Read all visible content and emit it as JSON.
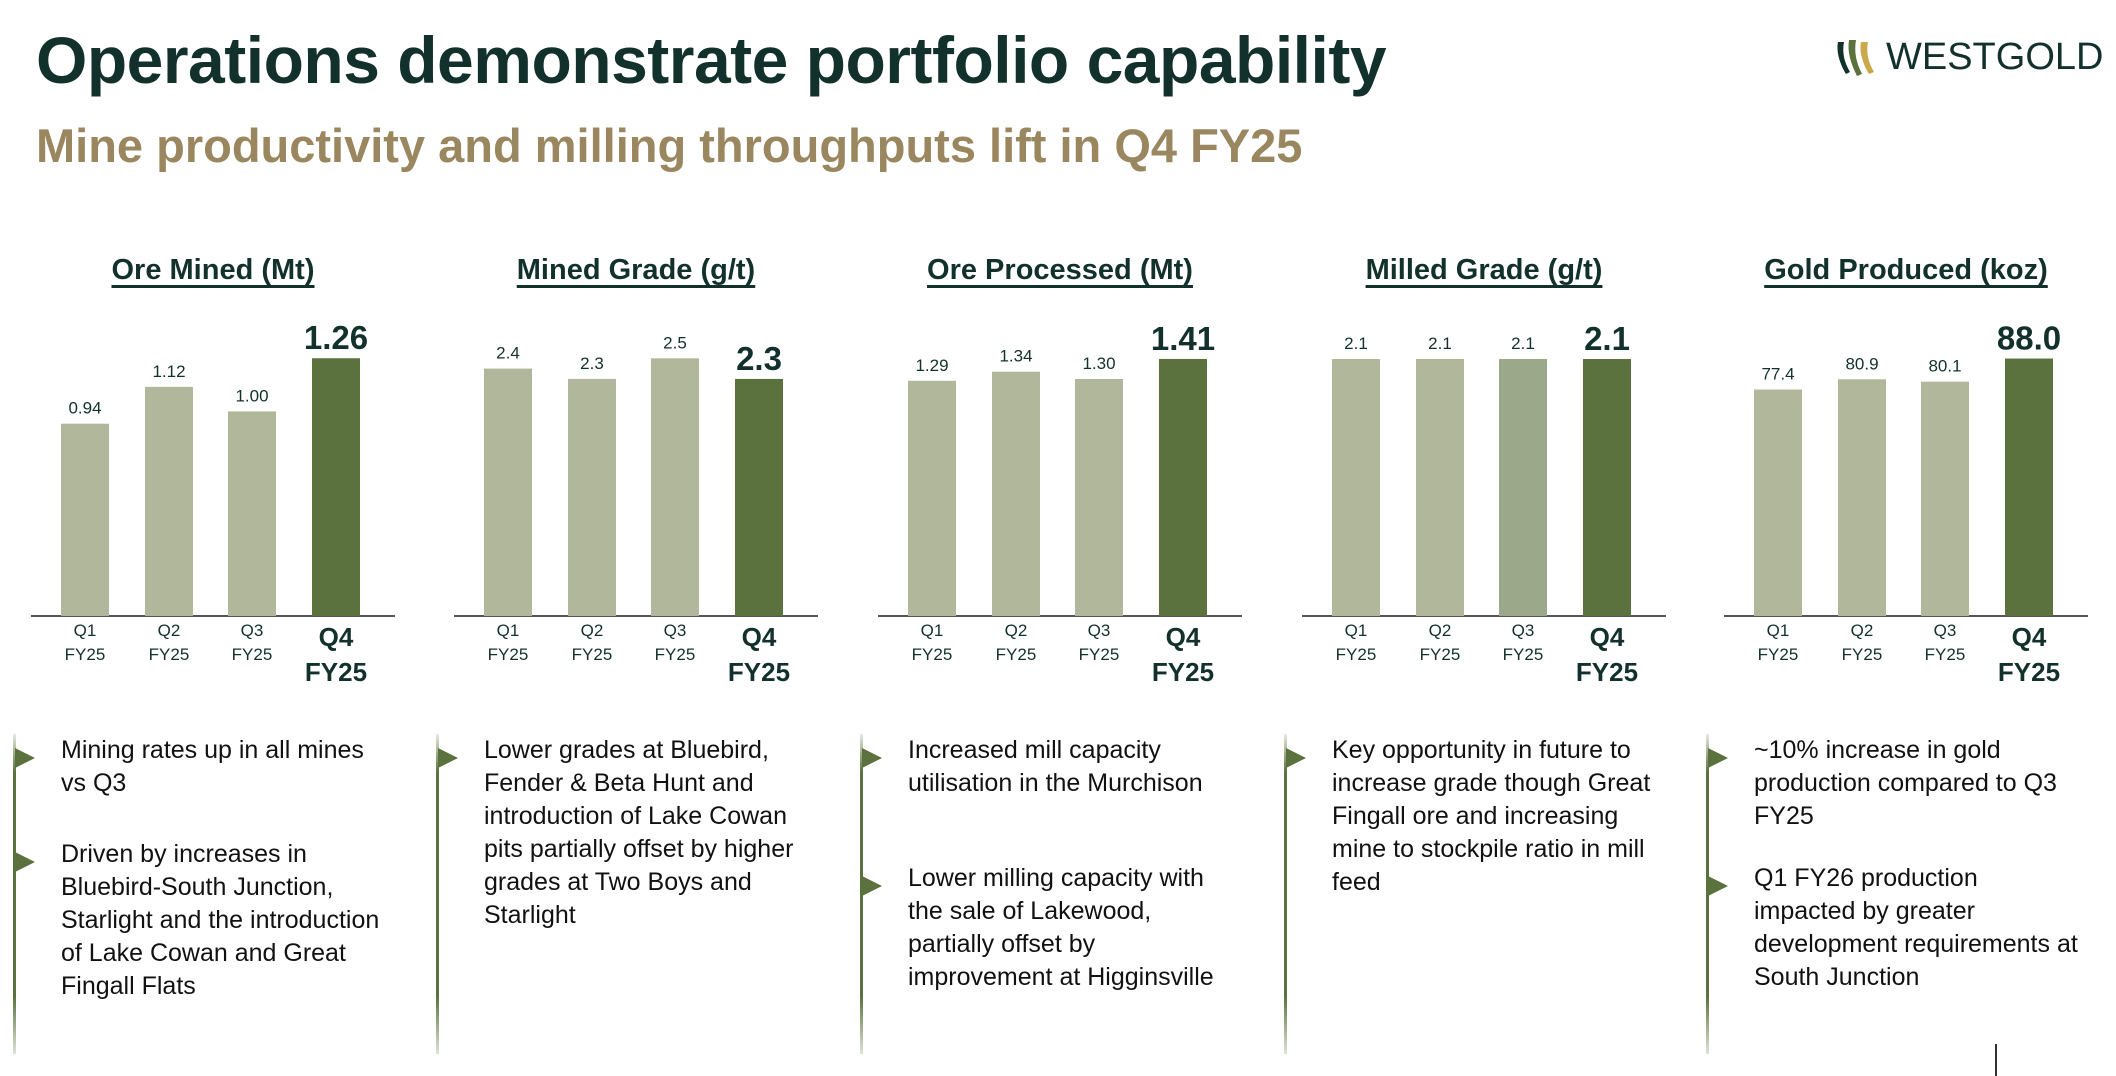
{
  "header": {
    "title": "Operations demonstrate portfolio capability",
    "subtitle": "Mine productivity and milling throughputs lift in Q4 FY25"
  },
  "logo": {
    "text": "WESTGOLD"
  },
  "colors": {
    "bar_light": "#b0b79b",
    "bar_mid": "#9ba88a",
    "bar_dark": "#5c723e",
    "axis": "#555555",
    "title": "#13312c",
    "subtitle": "#9a8760"
  },
  "chart_data": [
    {
      "type": "bar",
      "title": "Ore Mined (Mt)",
      "categories": [
        "Q1 FY25",
        "Q2 FY25",
        "Q3 FY25",
        "Q4 FY25"
      ],
      "values": [
        0.94,
        1.12,
        1.0,
        1.26
      ],
      "labels": [
        "0.94",
        "1.12",
        "1.00",
        "1.26"
      ],
      "highlight_index": 3,
      "ylim": [
        0,
        1.31
      ]
    },
    {
      "type": "bar",
      "title": "Mined Grade (g/t)",
      "categories": [
        "Q1 FY25",
        "Q2 FY25",
        "Q3 FY25",
        "Q4 FY25"
      ],
      "values": [
        2.4,
        2.3,
        2.5,
        2.3
      ],
      "labels": [
        "2.4",
        "2.3",
        "2.5",
        "2.3"
      ],
      "highlight_index": 3,
      "ylim": [
        0,
        2.6
      ]
    },
    {
      "type": "bar",
      "title": "Ore Processed (Mt)",
      "categories": [
        "Q1 FY25",
        "Q2 FY25",
        "Q3 FY25",
        "Q4 FY25"
      ],
      "values": [
        1.29,
        1.34,
        1.3,
        1.41
      ],
      "labels": [
        "1.29",
        "1.34",
        "1.30",
        "1.41"
      ],
      "highlight_index": 3,
      "ylim": [
        0,
        1.47
      ]
    },
    {
      "type": "bar",
      "title": "Milled Grade (g/t)",
      "categories": [
        "Q1 FY25",
        "Q2 FY25",
        "Q3 FY25",
        "Q4 FY25"
      ],
      "values": [
        2.1,
        2.1,
        2.1,
        2.1
      ],
      "labels": [
        "2.1",
        "2.1",
        "2.1",
        "2.1"
      ],
      "highlight_index": 3,
      "ylim": [
        0,
        2.19
      ]
    },
    {
      "type": "bar",
      "title": "Gold Produced (koz)",
      "categories": [
        "Q1 FY25",
        "Q2 FY25",
        "Q3 FY25",
        "Q4 FY25"
      ],
      "values": [
        77.4,
        80.9,
        80.1,
        88.0
      ],
      "labels": [
        "77.4",
        "80.9",
        "80.1",
        "88.0"
      ],
      "highlight_index": 3,
      "ylim": [
        0,
        91.6
      ]
    }
  ],
  "bullets": [
    [
      "Mining rates up in all mines vs Q3",
      "Driven by increases in Bluebird-South Junction, Starlight and the introduction of Lake Cowan and Great Fingall Flats"
    ],
    [
      "Lower grades at Bluebird, Fender & Beta Hunt and introduction of Lake Cowan pits partially offset by higher grades at Two Boys and Starlight"
    ],
    [
      "Increased mill capacity utilisation in the Murchison",
      "Lower milling capacity with the sale of Lakewood, partially offset by improvement at Higginsville"
    ],
    [
      "Key opportunity in future to increase grade though Great Fingall ore and increasing mine to stockpile ratio in mill feed"
    ],
    [
      "~10% increase in gold production compared to Q3 FY25",
      "Q1 FY26 production impacted by greater development requirements at South Junction"
    ]
  ]
}
